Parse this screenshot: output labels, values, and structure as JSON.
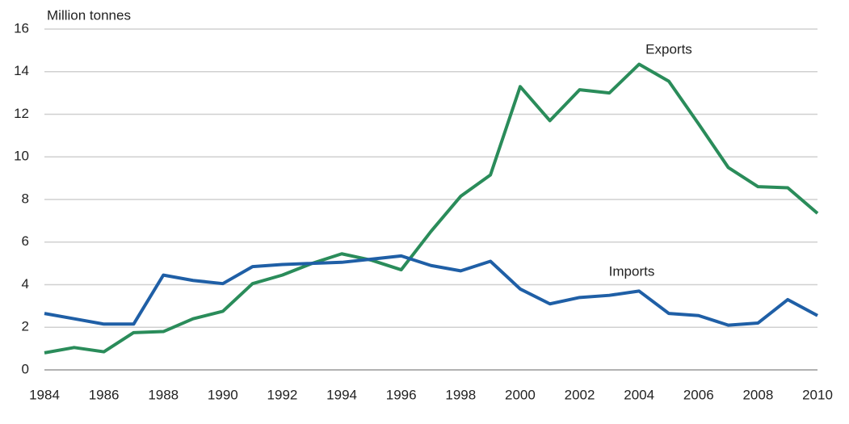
{
  "chart_data": {
    "type": "line",
    "y_label": "Million tonnes",
    "x": [
      1984,
      1985,
      1986,
      1987,
      1988,
      1989,
      1990,
      1991,
      1992,
      1993,
      1994,
      1995,
      1996,
      1997,
      1998,
      1999,
      2000,
      2001,
      2002,
      2003,
      2004,
      2005,
      2006,
      2007,
      2008,
      2009,
      2010
    ],
    "series": [
      {
        "name": "Exports",
        "color": "#2a8c5a",
        "values": [
          0.8,
          1.05,
          0.85,
          1.75,
          1.8,
          2.4,
          2.75,
          4.05,
          4.45,
          5.0,
          5.45,
          5.15,
          4.7,
          6.5,
          8.15,
          9.15,
          13.3,
          11.7,
          13.15,
          13.0,
          14.35,
          13.55,
          11.55,
          9.5,
          8.6,
          8.55,
          7.35
        ]
      },
      {
        "name": "Imports",
        "color": "#1f5fa6",
        "values": [
          2.65,
          2.4,
          2.15,
          2.15,
          4.45,
          4.2,
          4.05,
          4.85,
          4.95,
          5.0,
          5.05,
          5.2,
          5.35,
          4.9,
          4.65,
          5.1,
          3.8,
          3.1,
          3.4,
          3.5,
          3.7,
          2.65,
          2.55,
          2.1,
          2.2,
          3.3,
          2.55
        ]
      }
    ],
    "xlim": [
      1984,
      2010
    ],
    "xticks": [
      1984,
      1986,
      1988,
      1990,
      1992,
      1994,
      1996,
      1998,
      2000,
      2002,
      2004,
      2006,
      2008,
      2010
    ],
    "ylim": [
      0,
      16
    ],
    "yticks": [
      0,
      2,
      4,
      6,
      8,
      10,
      12,
      14,
      16
    ],
    "grid": true
  }
}
